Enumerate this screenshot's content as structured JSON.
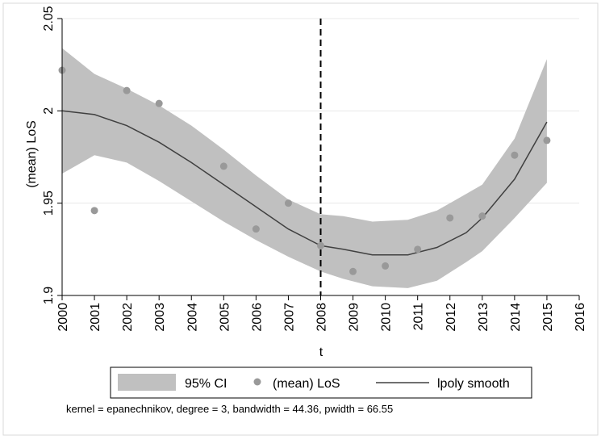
{
  "chart_data": {
    "type": "line",
    "xlabel": "t",
    "ylabel": "(mean) LoS",
    "xlim": [
      2000,
      2016
    ],
    "ylim": [
      1.9,
      2.05
    ],
    "x_ticks": [
      2000,
      2001,
      2002,
      2003,
      2004,
      2005,
      2006,
      2007,
      2008,
      2009,
      2010,
      2011,
      2012,
      2013,
      2014,
      2015,
      2016
    ],
    "x_tick_labels": [
      "2000",
      "2001",
      "2002",
      "2003",
      "2004",
      "2005",
      "2006",
      "2007",
      "2008",
      "2009",
      "2010",
      "2011",
      "2012",
      "2013",
      "2014",
      "2015",
      "2016"
    ],
    "y_ticks": [
      1.9,
      1.95,
      2.0,
      2.05
    ],
    "y_tick_labels": [
      "1.9",
      "1.95",
      "2",
      "2.05"
    ],
    "grid": true,
    "vertical_reference_line": {
      "x": 2008,
      "style": "dashed"
    },
    "series": [
      {
        "name": "95% CI",
        "kind": "band",
        "x": [
          2000,
          2001,
          2002,
          2003,
          2004,
          2005,
          2006,
          2007,
          2008,
          2008.7,
          2009.6,
          2010.7,
          2011.6,
          2012.5,
          2013,
          2014,
          2015
        ],
        "lower": [
          1.966,
          1.976,
          1.972,
          1.962,
          1.951,
          1.94,
          1.93,
          1.921,
          1.913,
          1.909,
          1.905,
          1.904,
          1.908,
          1.918,
          1.924,
          1.942,
          1.961
        ],
        "upper": [
          2.034,
          2.02,
          2.012,
          2.003,
          1.992,
          1.979,
          1.965,
          1.952,
          1.944,
          1.943,
          1.94,
          1.941,
          1.946,
          1.955,
          1.96,
          1.985,
          2.028
        ]
      },
      {
        "name": "(mean) LoS",
        "kind": "scatter",
        "x": [
          2000,
          2001,
          2002,
          2003,
          2005,
          2006,
          2007,
          2008,
          2009,
          2010,
          2011,
          2012,
          2013,
          2014,
          2015
        ],
        "values": [
          2.022,
          1.946,
          2.011,
          2.004,
          1.97,
          1.936,
          1.95,
          1.927,
          1.913,
          1.916,
          1.925,
          1.942,
          1.943,
          1.976,
          1.984
        ]
      },
      {
        "name": "lpoly smooth",
        "kind": "line",
        "x": [
          2000,
          2001,
          2002,
          2003,
          2004,
          2005,
          2006,
          2007,
          2008,
          2008.7,
          2009.6,
          2010.7,
          2011.6,
          2012.5,
          2013,
          2014,
          2015
        ],
        "values": [
          2.0,
          1.998,
          1.992,
          1.983,
          1.972,
          1.96,
          1.948,
          1.936,
          1.927,
          1.925,
          1.922,
          1.922,
          1.926,
          1.934,
          1.942,
          1.963,
          1.994
        ]
      }
    ],
    "legend": {
      "position": "bottom",
      "entries": [
        "95% CI",
        "(mean) LoS",
        "lpoly smooth"
      ]
    },
    "note": "kernel = epanechnikov, degree = 3, bandwidth = 44.36, pwidth = 66.55"
  },
  "colors": {
    "ci_band": "#c0c0c0",
    "points": "#999999",
    "line": "#404040",
    "grid": "#e8e8e8",
    "frame": "#d9d9d9"
  }
}
